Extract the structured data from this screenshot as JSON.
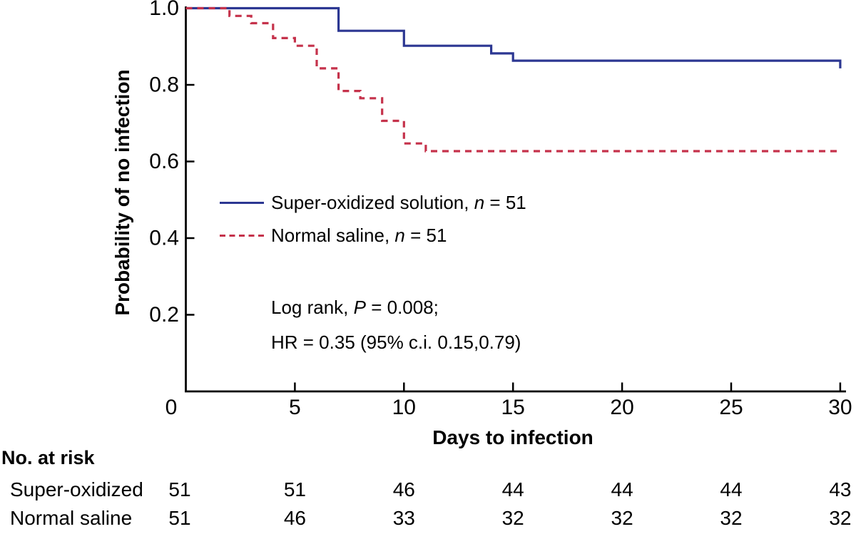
{
  "chart_data": {
    "type": "line",
    "subtype": "kaplan-meier-step",
    "title": "",
    "xlabel": "Days to infection",
    "ylabel": "Probability of no infection",
    "xlim": [
      0,
      30
    ],
    "ylim": [
      0,
      1.0
    ],
    "x_ticks": [
      {
        "value": 0,
        "label": "0"
      },
      {
        "value": 5,
        "label": "5"
      },
      {
        "value": 10,
        "label": "10"
      },
      {
        "value": 15,
        "label": "15"
      },
      {
        "value": 20,
        "label": "20"
      },
      {
        "value": 25,
        "label": "25"
      },
      {
        "value": 30,
        "label": "30"
      }
    ],
    "y_ticks": [
      {
        "value": 1.0,
        "label": "1.0"
      },
      {
        "value": 0.8,
        "label": "0.8"
      },
      {
        "value": 0.6,
        "label": "0.6"
      },
      {
        "value": 0.4,
        "label": "0.4"
      },
      {
        "value": 0.2,
        "label": "0.2"
      }
    ],
    "grid": false,
    "legend_position": "inside-upper-left",
    "series": [
      {
        "name": "Super-oxidized solution",
        "n": 51,
        "legend_label": "Super-oxidized solution, n = 51",
        "color": "#2c3792",
        "line_style": "solid",
        "steps_day_probability": [
          [
            0,
            1.0
          ],
          [
            7,
            0.941
          ],
          [
            10,
            0.902
          ],
          [
            14,
            0.882
          ],
          [
            15,
            0.863
          ],
          [
            30,
            0.843
          ]
        ]
      },
      {
        "name": "Normal saline",
        "n": 51,
        "legend_label": "Normal saline, n = 51",
        "color": "#c5324b",
        "line_style": "dashed",
        "steps_day_probability": [
          [
            0,
            1.0
          ],
          [
            2,
            0.98
          ],
          [
            3,
            0.961
          ],
          [
            4,
            0.922
          ],
          [
            5,
            0.902
          ],
          [
            6,
            0.843
          ],
          [
            7,
            0.784
          ],
          [
            8,
            0.765
          ],
          [
            9,
            0.706
          ],
          [
            10,
            0.647
          ],
          [
            11,
            0.627
          ],
          [
            30,
            0.627
          ]
        ]
      }
    ],
    "annotations": [
      "Log rank, P = 0.008;",
      "HR = 0.35 (95% c.i. 0.15,0.79)"
    ],
    "risk_table": {
      "title": "No. at risk",
      "time_points": [
        0,
        5,
        10,
        15,
        20,
        25,
        30
      ],
      "rows": [
        {
          "label": "Super-oxidized",
          "values": [
            51,
            51,
            46,
            44,
            44,
            44,
            43
          ]
        },
        {
          "label": "Normal saline",
          "values": [
            51,
            46,
            33,
            32,
            32,
            32,
            32
          ]
        }
      ]
    }
  },
  "labels": {
    "y_title": "Probability of no infection",
    "x_title": "Days to infection",
    "legend": [
      {
        "before": "Super-oxidized solution, ",
        "it": "n",
        "after": " = 51"
      },
      {
        "before": "Normal saline, ",
        "it": "n",
        "after": " = 51"
      }
    ],
    "stats": [
      {
        "before": "Log rank, ",
        "it": "P",
        "after": " = 0.008;"
      },
      {
        "before": "HR = 0.35 (95% c.i. 0.15,0.79)",
        "it": "",
        "after": ""
      }
    ],
    "risk_title": "No. at risk",
    "risk_rows": [
      "Super-oxidized",
      "Normal saline"
    ]
  },
  "colors": {
    "super_oxidized": "#2c3792",
    "normal_saline": "#c5324b",
    "axis": "#000000"
  }
}
